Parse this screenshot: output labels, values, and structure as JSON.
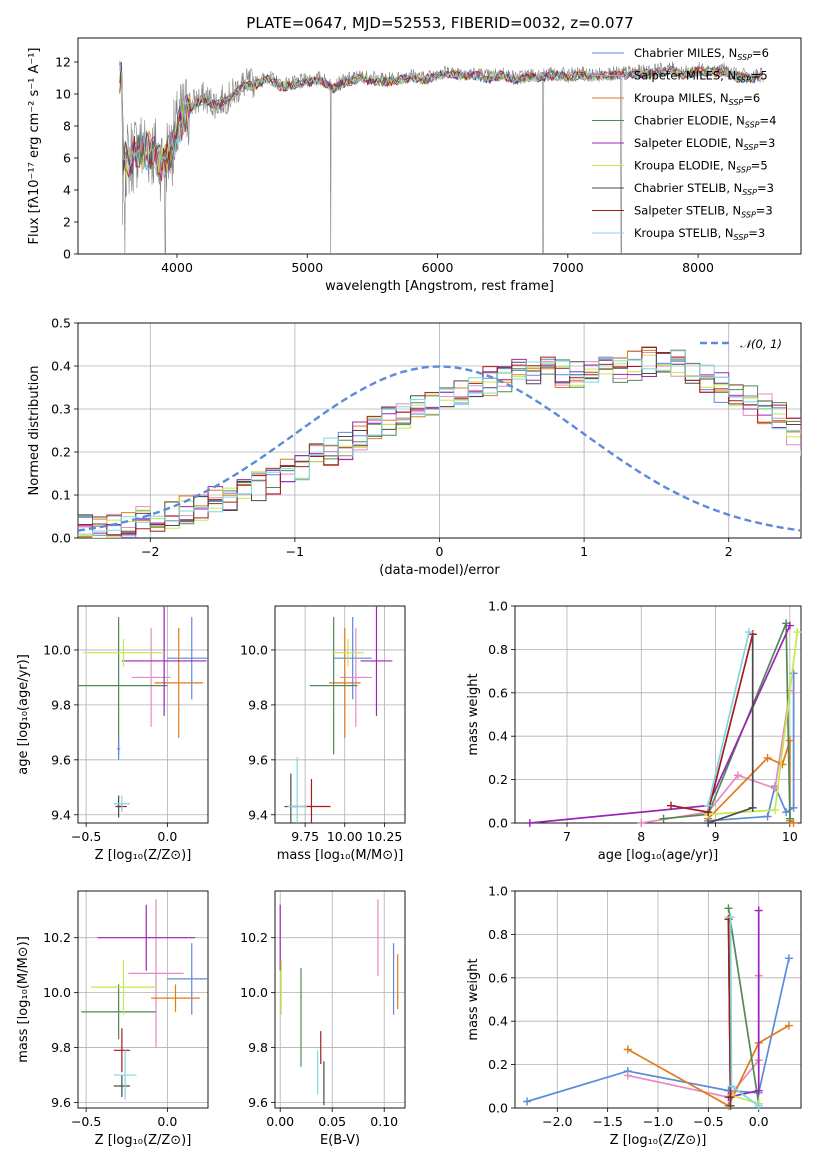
{
  "figure_title": "PLATE=0647, MJD=52553, FIBERID=0032, z=0.077",
  "chart_data": [
    {
      "type": "line",
      "panel": "spectrum",
      "xlabel": "wavelength [Angstrom, rest frame]",
      "ylabel": "Flux [fλ10⁻¹⁷ erg cm⁻² s⁻¹ A⁻¹]",
      "xlim": [
        3240,
        8790
      ],
      "ylim": [
        0,
        13.5
      ],
      "xticks": [
        "4000",
        "5000",
        "6000",
        "7000",
        "8000"
      ],
      "yticks": [
        "0",
        "2",
        "4",
        "6",
        "8",
        "10",
        "12"
      ],
      "grid": false,
      "legend_position": "right",
      "observed_color": "#808080",
      "continuum": [
        [
          3580,
          6.2
        ],
        [
          3620,
          5.9
        ],
        [
          3700,
          6.6
        ],
        [
          3800,
          6.6
        ],
        [
          3880,
          5.8
        ],
        [
          3950,
          6.5
        ],
        [
          4020,
          8.2
        ],
        [
          4100,
          9.3
        ],
        [
          4200,
          9.8
        ],
        [
          4300,
          9.4
        ],
        [
          4400,
          9.8
        ],
        [
          4500,
          10.6
        ],
        [
          4600,
          10.7
        ],
        [
          4700,
          11.1
        ],
        [
          4800,
          10.6
        ],
        [
          4900,
          10.7
        ],
        [
          5000,
          10.9
        ],
        [
          5100,
          11.0
        ],
        [
          5200,
          10.5
        ],
        [
          5300,
          10.9
        ],
        [
          5400,
          11.1
        ],
        [
          5500,
          11.0
        ],
        [
          5600,
          10.9
        ],
        [
          5700,
          11.0
        ],
        [
          5800,
          11.2
        ],
        [
          5900,
          11.0
        ],
        [
          6000,
          11.3
        ],
        [
          6100,
          11.4
        ],
        [
          6200,
          11.3
        ],
        [
          6300,
          11.3
        ],
        [
          6400,
          11.1
        ],
        [
          6500,
          11.3
        ],
        [
          6600,
          11.0
        ],
        [
          6700,
          11.2
        ],
        [
          6800,
          11.2
        ],
        [
          6900,
          11.3
        ],
        [
          7000,
          11.2
        ],
        [
          7100,
          11.3
        ],
        [
          7200,
          11.2
        ],
        [
          7300,
          11.3
        ],
        [
          7400,
          11.3
        ],
        [
          7500,
          11.4
        ],
        [
          7600,
          11.4
        ],
        [
          7700,
          11.5
        ],
        [
          7800,
          11.6
        ],
        [
          7900,
          11.3
        ],
        [
          8000,
          11.6
        ],
        [
          8100,
          11.5
        ],
        [
          8200,
          11.5
        ],
        [
          8300,
          11.2
        ],
        [
          8400,
          11.1
        ],
        [
          8500,
          11.2
        ]
      ],
      "dips": [
        [
          3580,
          0
        ],
        [
          3600,
          0
        ],
        [
          3910,
          0
        ],
        [
          5180,
          0
        ],
        [
          6810,
          0
        ],
        [
          7410,
          0
        ]
      ],
      "series": [
        {
          "name": "Chabrier MILES, N$_{SSP}$=6",
          "label_main": "Chabrier MILES, N",
          "label_sub": "SSP",
          "label_tail": "=6",
          "color": "#5b8bd9"
        },
        {
          "name": "Salpeter MILES, N$_{SSP}$=5",
          "label_main": "Salpeter MILES, N",
          "label_sub": "SSP",
          "label_tail": "=5",
          "color": "#e78ac3"
        },
        {
          "name": "Kroupa MILES, N$_{SSP}$=6",
          "label_main": "Kroupa MILES, N",
          "label_sub": "SSP",
          "label_tail": "=6",
          "color": "#e07b1e"
        },
        {
          "name": "Chabrier ELODIE, N$_{SSP}$=4",
          "label_main": "Chabrier ELODIE, N",
          "label_sub": "SSP",
          "label_tail": "=4",
          "color": "#4f8a57"
        },
        {
          "name": "Salpeter ELODIE, N$_{SSP}$=3",
          "label_main": "Salpeter ELODIE, N",
          "label_sub": "SSP",
          "label_tail": "=3",
          "color": "#9c25b5"
        },
        {
          "name": "Kroupa ELODIE, N$_{SSP}$=5",
          "label_main": "Kroupa ELODIE, N",
          "label_sub": "SSP",
          "label_tail": "=5",
          "color": "#c6e84a"
        },
        {
          "name": "Chabrier STELIB, N$_{SSP}$=3",
          "label_main": "Chabrier STELIB, N",
          "label_sub": "SSP",
          "label_tail": "=3",
          "color": "#4a4a4a"
        },
        {
          "name": "Salpeter STELIB, N$_{SSP}$=3",
          "label_main": "Salpeter STELIB, N",
          "label_sub": "SSP",
          "label_tail": "=3",
          "color": "#a61c1c"
        },
        {
          "name": "Kroupa STELIB, N$_{SSP}$=3",
          "label_main": "Kroupa STELIB, N",
          "label_sub": "SSP",
          "label_tail": "=3",
          "color": "#7fd8e0"
        }
      ]
    },
    {
      "type": "line",
      "panel": "residual_histogram",
      "xlabel": "(data-model)/error",
      "ylabel": "Normed distribution",
      "xlim": [
        -2.5,
        2.5
      ],
      "ylim": [
        0,
        0.5
      ],
      "xticks": [
        "−2",
        "−1",
        "0",
        "1",
        "2"
      ],
      "yticks": [
        "0.0",
        "0.1",
        "0.2",
        "0.3",
        "0.4",
        "0.5"
      ],
      "grid": true,
      "legend_position": "top-right",
      "reference": {
        "name": "N(0,1)",
        "label": "𝒩(0, 1)",
        "color": "#5b8bd9",
        "style": "dashed"
      },
      "bin_width": 0.1,
      "bin_start": -2.5,
      "base_hist": [
        0.02,
        0.025,
        0.03,
        0.035,
        0.04,
        0.048,
        0.055,
        0.065,
        0.075,
        0.085,
        0.095,
        0.11,
        0.12,
        0.135,
        0.15,
        0.17,
        0.185,
        0.2,
        0.215,
        0.235,
        0.25,
        0.27,
        0.285,
        0.305,
        0.32,
        0.33,
        0.345,
        0.355,
        0.365,
        0.375,
        0.385,
        0.39,
        0.39,
        0.38,
        0.385,
        0.38,
        0.39,
        0.395,
        0.4,
        0.41,
        0.42,
        0.41,
        0.39,
        0.37,
        0.35,
        0.335,
        0.32,
        0.3,
        0.28,
        0.25,
        0.225,
        0.2,
        0.18,
        0.165,
        0.15,
        0.135,
        0.12,
        0.1,
        0.09,
        0.08,
        0.07,
        0.06,
        0.055,
        0.045,
        0.04,
        0.035,
        0.03,
        0.025,
        0.022,
        0.02
      ]
    },
    {
      "type": "scatter",
      "panel": "age_vs_Z",
      "xlabel": "Z [log₁₀(Z/Z⊙)]",
      "ylabel": "age  [log₁₀(age/yr)]",
      "xlim": [
        -0.55,
        0.25
      ],
      "ylim": [
        9.37,
        10.16
      ],
      "xticks": [
        "−0.5",
        "0.0"
      ],
      "yticks": [
        "9.4",
        "9.6",
        "9.8",
        "10.0"
      ],
      "grid": true,
      "points": [
        {
          "s": 0,
          "x": 0.15,
          "y": 9.97,
          "xerr": 0.15,
          "yerr": 0.15
        },
        {
          "s": 1,
          "x": -0.1,
          "y": 9.9,
          "xerr": 0.12,
          "yerr": 0.18
        },
        {
          "s": 2,
          "x": 0.07,
          "y": 9.88,
          "xerr": 0.15,
          "yerr": 0.2
        },
        {
          "s": 3,
          "x": -0.3,
          "y": 9.87,
          "xerr": 0.3,
          "yerr": 0.25
        },
        {
          "s": 4,
          "x": -0.02,
          "y": 9.96,
          "xerr": 0.26,
          "yerr": 0.2
        },
        {
          "s": 5,
          "x": -0.27,
          "y": 9.99,
          "xerr": 0.25,
          "yerr": 0.05
        },
        {
          "s": 6,
          "x": -0.3,
          "y": 9.43,
          "xerr": 0.02,
          "yerr": 0.04
        },
        {
          "s": 7,
          "x": -0.28,
          "y": 9.43,
          "xerr": 0.03,
          "yerr": 0.01
        },
        {
          "s": 8,
          "x": -0.28,
          "y": 9.44,
          "xerr": 0.05,
          "yerr": 0.03
        },
        {
          "s": 0,
          "x": -0.3,
          "y": 9.64,
          "xerr": 0.01,
          "yerr": 0.04
        }
      ]
    },
    {
      "type": "scatter",
      "panel": "age_vs_mass",
      "xlabel": "mass [log₁₀(M/M⊙)]",
      "ylabel": "",
      "xlim": [
        9.56,
        10.38
      ],
      "ylim": [
        9.37,
        10.16
      ],
      "xticks": [
        "9.75",
        "10.00",
        "10.25"
      ],
      "yticks": [
        "9.4",
        "9.6",
        "9.8",
        "10.0"
      ],
      "grid": true,
      "points": [
        {
          "s": 0,
          "x": 10.05,
          "y": 9.97,
          "xerr": 0.12,
          "yerr": 0.15
        },
        {
          "s": 1,
          "x": 10.07,
          "y": 9.9,
          "xerr": 0.1,
          "yerr": 0.18
        },
        {
          "s": 2,
          "x": 10.0,
          "y": 9.88,
          "xerr": 0.1,
          "yerr": 0.2
        },
        {
          "s": 3,
          "x": 9.93,
          "y": 9.87,
          "xerr": 0.15,
          "yerr": 0.25
        },
        {
          "s": 4,
          "x": 10.2,
          "y": 9.96,
          "xerr": 0.1,
          "yerr": 0.2
        },
        {
          "s": 5,
          "x": 10.02,
          "y": 9.99,
          "xerr": 0.1,
          "yerr": 0.05
        },
        {
          "s": 6,
          "x": 9.66,
          "y": 9.43,
          "xerr": 0.04,
          "yerr": 0.12
        },
        {
          "s": 7,
          "x": 9.79,
          "y": 9.43,
          "xerr": 0.12,
          "yerr": 0.1
        },
        {
          "s": 8,
          "x": 9.7,
          "y": 9.43,
          "xerr": 0.06,
          "yerr": 0.18
        }
      ]
    },
    {
      "type": "line",
      "panel": "mass_weight_vs_age",
      "xlabel": "age  [log₁₀(age/yr)]",
      "ylabel": "mass weight",
      "xlim": [
        6.3,
        10.15
      ],
      "ylim": [
        0,
        1.0
      ],
      "xticks": [
        "7",
        "8",
        "9",
        "10"
      ],
      "yticks": [
        "0.0",
        "0.2",
        "0.4",
        "0.6",
        "0.8",
        "1.0"
      ],
      "grid": true,
      "series_points": [
        {
          "s": 0,
          "x": [
            8.9,
            9.7,
            9.8,
            9.95,
            10.05,
            10.05
          ],
          "y": [
            0.01,
            0.03,
            0.17,
            0.05,
            0.07,
            0.69
          ]
        },
        {
          "s": 1,
          "x": [
            8.0,
            8.9,
            9.3,
            9.8,
            10.0
          ],
          "y": [
            0.0,
            0.05,
            0.22,
            0.16,
            0.61
          ]
        },
        {
          "s": 2,
          "x": [
            8.9,
            9.7,
            9.9,
            10.0,
            10.0,
            10.05
          ],
          "y": [
            0.02,
            0.3,
            0.27,
            0.38,
            0.01,
            0.0
          ]
        },
        {
          "s": 3,
          "x": [
            8.3,
            8.9,
            9.95,
            10.0
          ],
          "y": [
            0.02,
            0.04,
            0.92,
            0.02
          ]
        },
        {
          "s": 4,
          "x": [
            6.5,
            8.9,
            10.0
          ],
          "y": [
            0.0,
            0.08,
            0.91
          ]
        },
        {
          "s": 5,
          "x": [
            8.9,
            9.8,
            10.1
          ],
          "y": [
            0.04,
            0.06,
            0.88
          ]
        },
        {
          "s": 6,
          "x": [
            8.9,
            9.5,
            9.5
          ],
          "y": [
            0.0,
            0.07,
            0.87
          ]
        },
        {
          "s": 7,
          "x": [
            8.4,
            8.9,
            9.5
          ],
          "y": [
            0.08,
            0.05,
            0.87
          ]
        },
        {
          "s": 8,
          "x": [
            8.9,
            9.45
          ],
          "y": [
            0.08,
            0.88
          ]
        }
      ]
    },
    {
      "type": "scatter",
      "panel": "mass_vs_Z",
      "xlabel": "Z [log₁₀(Z/Z⊙)]",
      "ylabel": "mass [log₁₀(M/M⊙)]",
      "xlim": [
        -0.55,
        0.25
      ],
      "ylim": [
        9.58,
        10.37
      ],
      "xticks": [
        "−0.5",
        "0.0"
      ],
      "yticks": [
        "9.6",
        "9.8",
        "10.0",
        "10.2"
      ],
      "grid": true,
      "points": [
        {
          "s": 0,
          "x": 0.15,
          "y": 10.05,
          "xerr": 0.15,
          "yerr": 0.13
        },
        {
          "s": 1,
          "x": -0.07,
          "y": 10.07,
          "xerr": 0.17,
          "yerr": 0.27
        },
        {
          "s": 2,
          "x": 0.05,
          "y": 9.98,
          "xerr": 0.15,
          "yerr": 0.05
        },
        {
          "s": 3,
          "x": -0.3,
          "y": 9.93,
          "xerr": 0.23,
          "yerr": 0.1
        },
        {
          "s": 4,
          "x": -0.13,
          "y": 10.2,
          "xerr": 0.3,
          "yerr": 0.12
        },
        {
          "s": 5,
          "x": -0.27,
          "y": 10.02,
          "xerr": 0.2,
          "yerr": 0.1
        },
        {
          "s": 6,
          "x": -0.28,
          "y": 9.66,
          "xerr": 0.05,
          "yerr": 0.04
        },
        {
          "s": 7,
          "x": -0.28,
          "y": 9.79,
          "xerr": 0.05,
          "yerr": 0.08
        },
        {
          "s": 8,
          "x": -0.26,
          "y": 9.7,
          "xerr": 0.07,
          "yerr": 0.09
        }
      ]
    },
    {
      "type": "scatter",
      "panel": "mass_vs_ebv",
      "xlabel": "E(B-V)",
      "ylabel": "",
      "xlim": [
        -0.005,
        0.12
      ],
      "ylim": [
        9.58,
        10.37
      ],
      "xticks": [
        "0.00",
        "0.05",
        "0.10"
      ],
      "yticks": [
        "9.6",
        "9.8",
        "10.0",
        "10.2"
      ],
      "grid": true,
      "points": [
        {
          "s": 0,
          "x": 0.109,
          "y": 10.05,
          "xerr": 0.0,
          "yerr": 0.13
        },
        {
          "s": 1,
          "x": 0.094,
          "y": 10.2,
          "xerr": 0.0,
          "yerr": 0.14
        },
        {
          "s": 2,
          "x": 0.113,
          "y": 10.04,
          "xerr": 0.0,
          "yerr": 0.1
        },
        {
          "s": 3,
          "x": 0.02,
          "y": 9.91,
          "xerr": 0.0,
          "yerr": 0.18
        },
        {
          "s": 4,
          "x": 0.0,
          "y": 10.2,
          "xerr": 0.0,
          "yerr": 0.12
        },
        {
          "s": 5,
          "x": 0.001,
          "y": 10.02,
          "xerr": 0.0,
          "yerr": 0.1
        },
        {
          "s": 6,
          "x": 0.042,
          "y": 9.67,
          "xerr": 0.0,
          "yerr": 0.08
        },
        {
          "s": 7,
          "x": 0.039,
          "y": 9.8,
          "xerr": 0.0,
          "yerr": 0.06
        },
        {
          "s": 8,
          "x": 0.036,
          "y": 9.71,
          "xerr": 0.0,
          "yerr": 0.08
        }
      ]
    },
    {
      "type": "line",
      "panel": "mass_weight_vs_Z",
      "xlabel": "Z [log₁₀(Z/Z⊙)]",
      "ylabel": "mass weight",
      "xlim": [
        -2.42,
        0.42
      ],
      "ylim": [
        0,
        1.0
      ],
      "xticks": [
        "−2.0",
        "−1.5",
        "−1.0",
        "−0.5",
        "0.0"
      ],
      "yticks": [
        "0.0",
        "0.2",
        "0.4",
        "0.6",
        "0.8",
        "1.0"
      ],
      "grid": true,
      "series_points": [
        {
          "s": 0,
          "x": [
            -2.3,
            -1.3,
            -0.3,
            0.0,
            0.3
          ],
          "y": [
            0.03,
            0.17,
            0.08,
            0.07,
            0.69
          ]
        },
        {
          "s": 1,
          "x": [
            -1.3,
            -0.3,
            0.0,
            0.0
          ],
          "y": [
            0.15,
            0.05,
            0.22,
            0.61
          ]
        },
        {
          "s": 2,
          "x": [
            -1.3,
            -0.3,
            0.0,
            0.3
          ],
          "y": [
            0.27,
            0.01,
            0.3,
            0.38
          ]
        },
        {
          "s": 3,
          "x": [
            -0.3,
            0.0
          ],
          "y": [
            0.92,
            0.02
          ]
        },
        {
          "s": 4,
          "x": [
            -0.3,
            0.0,
            0.0
          ],
          "y": [
            0.05,
            0.08,
            0.91
          ]
        },
        {
          "s": 5,
          "x": [
            -0.3,
            -0.28,
            0.0
          ],
          "y": [
            0.88,
            0.06,
            0.02
          ]
        },
        {
          "s": 6,
          "x": [
            -0.3,
            -0.28
          ],
          "y": [
            0.87,
            0.01
          ]
        },
        {
          "s": 7,
          "x": [
            -0.3,
            -0.28
          ],
          "y": [
            0.87,
            0.05
          ]
        },
        {
          "s": 8,
          "x": [
            -0.28,
            -0.27,
            0.0
          ],
          "y": [
            0.88,
            0.1,
            0.01
          ]
        }
      ]
    }
  ]
}
